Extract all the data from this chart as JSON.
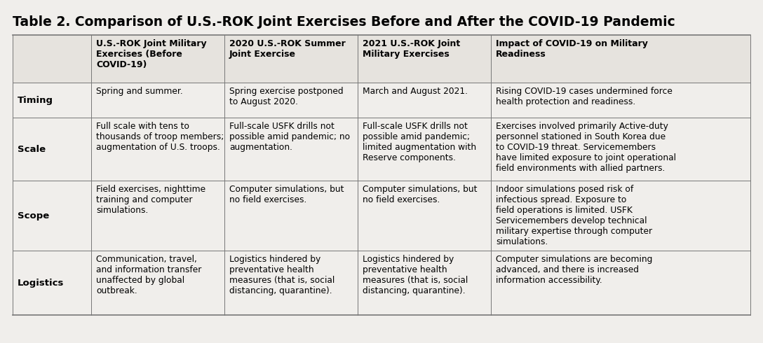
{
  "title": "Table 2. Comparison of U.S.-ROK Joint Exercises Before and After the COVID-19 Pandemic",
  "background_color": "#f0eeeb",
  "col_headers": [
    "U.S.-ROK Joint Military\nExercises (Before\nCOVID-19)",
    "2020 U.S.-ROK Summer\nJoint Exercise",
    "2021 U.S.-ROK Joint\nMilitary Exercises",
    "Impact of COVID-19 on Military\nReadiness"
  ],
  "row_headers": [
    "Timing",
    "Scale",
    "Scope",
    "Logistics"
  ],
  "cells": [
    [
      "Spring and summer.",
      "Spring exercise postponed\nto August 2020.",
      "March and August 2021.",
      "Rising COVID-19 cases undermined force\nhealth protection and readiness."
    ],
    [
      "Full scale with tens to\nthousands of troop members;\naugmentation of U.S. troops.",
      "Full-scale USFK drills not\npossible amid pandemic; no\naugmentation.",
      "Full-scale USFK drills not\npossible amid pandemic;\nlimited augmentation with\nReserve components.",
      "Exercises involved primarily Active-duty\npersonnel stationed in South Korea due\nto COVID-19 threat. Servicemembers\nhave limited exposure to joint operational\nfield environments with allied partners."
    ],
    [
      "Field exercises, nighttime\ntraining and computer\nsimulations.",
      "Computer simulations, but\nno field exercises.",
      "Computer simulations, but\nno field exercises.",
      "Indoor simulations posed risk of\ninfectious spread. Exposure to\nfield operations is limited. USFK\nServicemembers develop technical\nmilitary expertise through computer\nsimulations."
    ],
    [
      "Communication, travel,\nand information transfer\nunaffected by global\noutbreak.",
      "Logistics hindered by\npreventative health\nmeasures (that is, social\ndistancing, quarantine).",
      "Logistics hindered by\npreventative health\nmeasures (that is, social\ndistancing, quarantine).",
      "Computer simulations are becoming\nadvanced, and there is increased\ninformation accessibility."
    ]
  ],
  "title_fontsize": 13.5,
  "header_fontsize": 9.0,
  "cell_fontsize": 8.8,
  "row_header_fontsize": 9.5
}
